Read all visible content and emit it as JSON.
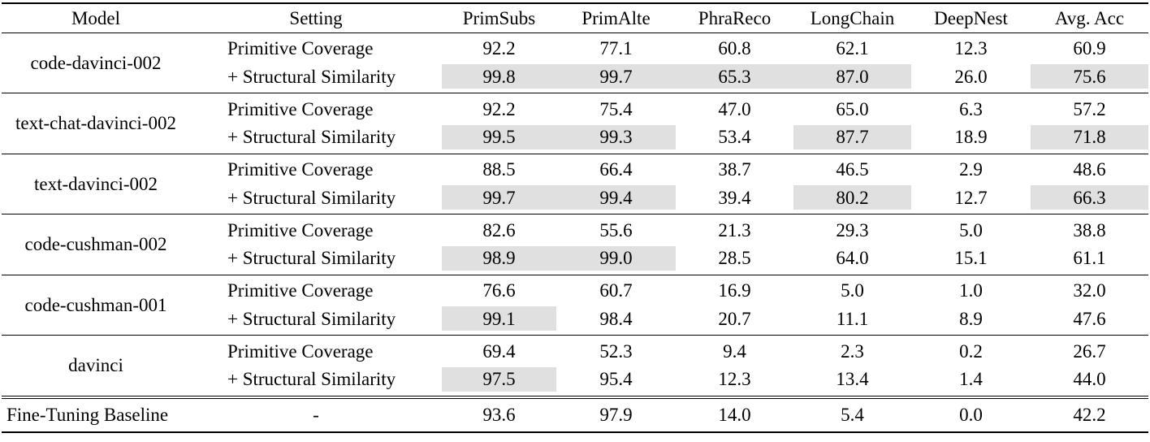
{
  "table": {
    "highlight_color": "#e0e0e0",
    "columns": [
      "Model",
      "Setting",
      "PrimSubs",
      "PrimAlte",
      "PhraReco",
      "LongChain",
      "DeepNest",
      "Avg. Acc"
    ],
    "groups": [
      {
        "model": "code-davinci-002",
        "rows": [
          {
            "setting": "Primitive Coverage",
            "values": [
              "92.2",
              "77.1",
              "60.8",
              "62.1",
              "12.3",
              "60.9"
            ],
            "highlight": [
              false,
              false,
              false,
              false,
              false,
              false
            ]
          },
          {
            "setting": "+ Structural Similarity",
            "values": [
              "99.8",
              "99.7",
              "65.3",
              "87.0",
              "26.0",
              "75.6"
            ],
            "highlight": [
              true,
              true,
              true,
              true,
              false,
              true
            ]
          }
        ]
      },
      {
        "model": "text-chat-davinci-002",
        "rows": [
          {
            "setting": "Primitive Coverage",
            "values": [
              "92.2",
              "75.4",
              "47.0",
              "65.0",
              "6.3",
              "57.2"
            ],
            "highlight": [
              false,
              false,
              false,
              false,
              false,
              false
            ]
          },
          {
            "setting": "+ Structural Similarity",
            "values": [
              "99.5",
              "99.3",
              "53.4",
              "87.7",
              "18.9",
              "71.8"
            ],
            "highlight": [
              true,
              true,
              false,
              true,
              false,
              true
            ]
          }
        ]
      },
      {
        "model": "text-davinci-002",
        "rows": [
          {
            "setting": "Primitive Coverage",
            "values": [
              "88.5",
              "66.4",
              "38.7",
              "46.5",
              "2.9",
              "48.6"
            ],
            "highlight": [
              false,
              false,
              false,
              false,
              false,
              false
            ]
          },
          {
            "setting": "+ Structural Similarity",
            "values": [
              "99.7",
              "99.4",
              "39.4",
              "80.2",
              "12.7",
              "66.3"
            ],
            "highlight": [
              true,
              true,
              false,
              true,
              false,
              true
            ]
          }
        ]
      },
      {
        "model": "code-cushman-002",
        "rows": [
          {
            "setting": "Primitive Coverage",
            "values": [
              "82.6",
              "55.6",
              "21.3",
              "29.3",
              "5.0",
              "38.8"
            ],
            "highlight": [
              false,
              false,
              false,
              false,
              false,
              false
            ]
          },
          {
            "setting": "+ Structural Similarity",
            "values": [
              "98.9",
              "99.0",
              "28.5",
              "64.0",
              "15.1",
              "61.1"
            ],
            "highlight": [
              true,
              true,
              false,
              false,
              false,
              false
            ]
          }
        ]
      },
      {
        "model": "code-cushman-001",
        "rows": [
          {
            "setting": "Primitive Coverage",
            "values": [
              "76.6",
              "60.7",
              "16.9",
              "5.0",
              "1.0",
              "32.0"
            ],
            "highlight": [
              false,
              false,
              false,
              false,
              false,
              false
            ]
          },
          {
            "setting": "+ Structural Similarity",
            "values": [
              "99.1",
              "98.4",
              "20.7",
              "11.1",
              "8.9",
              "47.6"
            ],
            "highlight": [
              true,
              false,
              false,
              false,
              false,
              false
            ]
          }
        ]
      },
      {
        "model": "davinci",
        "rows": [
          {
            "setting": "Primitive Coverage",
            "values": [
              "69.4",
              "52.3",
              "9.4",
              "2.3",
              "0.2",
              "26.7"
            ],
            "highlight": [
              false,
              false,
              false,
              false,
              false,
              false
            ]
          },
          {
            "setting": "+ Structural Similarity",
            "values": [
              "97.5",
              "95.4",
              "12.3",
              "13.4",
              "1.4",
              "44.0"
            ],
            "highlight": [
              true,
              false,
              false,
              false,
              false,
              false
            ]
          }
        ]
      }
    ],
    "baseline": {
      "model": "Fine-Tuning Baseline",
      "setting": "-",
      "values": [
        "93.6",
        "97.9",
        "14.0",
        "5.4",
        "0.0",
        "42.2"
      ],
      "highlight": [
        false,
        false,
        false,
        false,
        false,
        false
      ]
    }
  }
}
